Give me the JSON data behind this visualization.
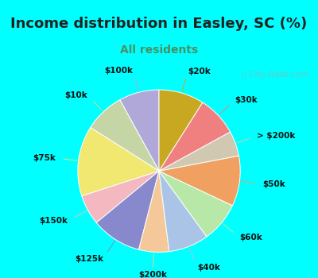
{
  "title": "Income distribution in Easley, SC (%)",
  "subtitle": "All residents",
  "background_color": "#00FFFF",
  "chart_bg_color": "#e8f5f0",
  "slices": [
    {
      "label": "$100k",
      "value": 8,
      "color": "#b0a8d8"
    },
    {
      "label": "$10k",
      "value": 8,
      "color": "#c5d5a5"
    },
    {
      "label": "$75k",
      "value": 14,
      "color": "#f0e870"
    },
    {
      "label": "$150k",
      "value": 6,
      "color": "#f4b8c0"
    },
    {
      "label": "$125k",
      "value": 10,
      "color": "#8888cc"
    },
    {
      "label": "$200k",
      "value": 6,
      "color": "#f5c89a"
    },
    {
      "label": "$40k",
      "value": 8,
      "color": "#aac4e8"
    },
    {
      "label": "$60k",
      "value": 8,
      "color": "#b8e8a8"
    },
    {
      "label": "$50k",
      "value": 10,
      "color": "#f0a060"
    },
    {
      "label": "> $200k",
      "value": 5,
      "color": "#d0c8b0"
    },
    {
      "label": "$30k",
      "value": 8,
      "color": "#f08080"
    },
    {
      "label": "$20k",
      "value": 9,
      "color": "#c8a820"
    }
  ],
  "title_fontsize": 13,
  "subtitle_fontsize": 10,
  "label_fontsize": 7.5,
  "title_color": "#222222",
  "subtitle_color": "#4a9060"
}
